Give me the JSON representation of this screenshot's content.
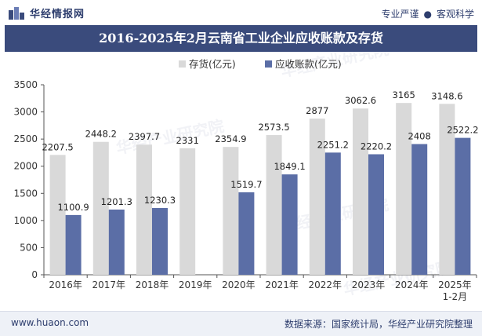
{
  "header": {
    "brand_name": "华经情报网",
    "tag_1": "专业严谨",
    "tag_separator": "●",
    "tag_2": "客观科学"
  },
  "title": "2016-2025年2月云南省工业企业应收账款及存货",
  "watermark": "华经产业研究院",
  "footer": {
    "website": "www.huaon.com",
    "source": "数据来源：国家统计局，华经产业研究院整理"
  },
  "colors": {
    "header_bar": "#3a4b7c",
    "series_inventory": "#d9d9d9",
    "series_receivables": "#5b6ea6"
  },
  "chart_data": {
    "type": "bar",
    "title": "2016-2025年2月云南省工业企业应收账款及存货",
    "categories": [
      "2016年",
      "2017年",
      "2018年",
      "2019年",
      "2020年",
      "2021年",
      "2022年",
      "2023年",
      "2024年",
      "2025年\n1-2月"
    ],
    "series": [
      {
        "name": "存货(亿元)",
        "values": [
          2207.5,
          2448.2,
          2397.7,
          2331,
          2354.9,
          2573.5,
          2877,
          3062.6,
          3165,
          3148.6
        ]
      },
      {
        "name": "应收账款(亿元)",
        "values": [
          1100.9,
          1201.3,
          1230.3,
          null,
          1519.7,
          1849.1,
          2251.2,
          2220.2,
          2408,
          2522.2
        ]
      }
    ],
    "value_labels": {
      "inventory": [
        "2207.5",
        "2448.2",
        "2397.7",
        "2331",
        "2354.9",
        "2573.5",
        "2877",
        "3062.6",
        "3165",
        "3148.6"
      ],
      "receivables": [
        "1100.9",
        "1201.3",
        "1230.3",
        "",
        "1519.7",
        "1849.1",
        "2251.2",
        "2220.2",
        "2408",
        "2522.2"
      ]
    },
    "ylim": [
      0,
      3500
    ],
    "yticks": [
      "0",
      "500",
      "1000",
      "1500",
      "2000",
      "2500",
      "3000",
      "3500"
    ],
    "legend_placement": "top-center",
    "grid": false
  }
}
